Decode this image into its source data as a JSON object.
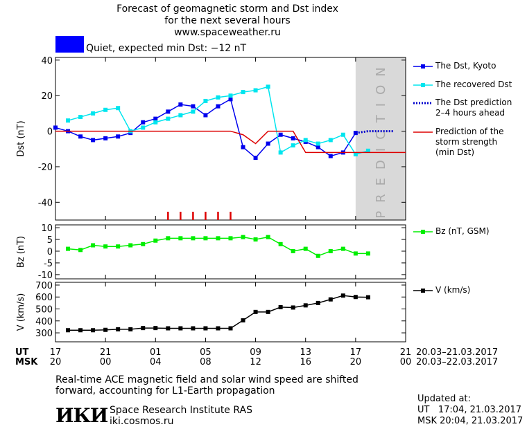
{
  "chart_data": [
    {
      "type": "line",
      "title": [
        "Forecast of geomagnetic storm and Dst index",
        "for the next several hours",
        "www.spaceweather.ru"
      ],
      "status": "Quiet, expected min Dst: −12 nT",
      "status_color": "#0000ff",
      "y_label": "Dst (nT)",
      "xlim": [
        0,
        28
      ],
      "ylim": [
        -50,
        41.5
      ],
      "yticks": [
        40,
        20,
        0,
        -20,
        -40
      ],
      "prediction_label": "PREDICTION",
      "prediction_span": [
        24,
        28
      ],
      "prediction_color": "#d9d9d9",
      "markers_x": [
        9,
        10,
        11,
        12,
        13,
        14
      ],
      "markers_color": "#dd0000",
      "series": [
        {
          "name": "The Dst, Kyoto",
          "color": "#0000ee",
          "marker": "square",
          "x": [
            0,
            1,
            2,
            3,
            4,
            5,
            6,
            7,
            8,
            9,
            10,
            11,
            12,
            13,
            14,
            15,
            16,
            17,
            18,
            19,
            20,
            21,
            22,
            23,
            24
          ],
          "values": [
            2,
            0,
            -3,
            -5,
            -4,
            -3,
            -1,
            5,
            7,
            11,
            15,
            14,
            9,
            14,
            18,
            -9,
            -15,
            -7,
            -2,
            -4,
            -6,
            -9,
            -14,
            -12,
            -1
          ]
        },
        {
          "name": "The recovered Dst",
          "color": "#00e5ee",
          "marker": "square",
          "x": [
            1,
            2,
            3,
            4,
            5,
            6,
            7,
            8,
            9,
            10,
            11,
            12,
            13,
            14,
            15,
            16,
            17,
            18,
            19,
            20,
            21,
            22,
            23,
            24,
            25
          ],
          "values": [
            6,
            8,
            10,
            12,
            13,
            0,
            2,
            5,
            7,
            9,
            11,
            17,
            19,
            20,
            22,
            23,
            25,
            -12,
            -8,
            -5,
            -7,
            -5,
            -2,
            -13,
            -11
          ]
        },
        {
          "name": "The Dst prediction\n2–4 hours ahead",
          "color": "#0000cc",
          "dash": "dotted",
          "x": [
            24,
            25,
            26,
            27
          ],
          "values": [
            -1,
            0,
            0,
            0
          ]
        },
        {
          "name": "Prediction of the\nstorm strength\n(min Dst)",
          "color": "#dd0000",
          "x": [
            0,
            14,
            15,
            16,
            17,
            19,
            20,
            28
          ],
          "values": [
            0,
            0,
            -2,
            -7,
            0,
            0,
            -12,
            -12
          ]
        }
      ]
    },
    {
      "type": "line",
      "y_label": "Bz (nT)",
      "xlim": [
        0,
        28
      ],
      "ylim": [
        -11.8,
        11.2
      ],
      "yticks": [
        10,
        5,
        0,
        -5,
        -10
      ],
      "series": [
        {
          "name": "Bz (nT, GSM)",
          "color": "#00ee00",
          "marker": "square",
          "x": [
            1,
            2,
            3,
            4,
            5,
            6,
            7,
            8,
            9,
            10,
            11,
            12,
            13,
            14,
            15,
            16,
            17,
            18,
            19,
            20,
            21,
            22,
            23,
            24,
            25
          ],
          "values": [
            1,
            0.5,
            2.5,
            2,
            2,
            2.5,
            3,
            4.5,
            5.5,
            5.5,
            5.5,
            5.5,
            5.5,
            5.5,
            6,
            5,
            6,
            3,
            0,
            1,
            -2,
            0,
            1,
            -1,
            -1
          ]
        }
      ]
    },
    {
      "type": "line",
      "y_label": "V (km/s)",
      "xlim": [
        0,
        28
      ],
      "ylim": [
        225,
        723
      ],
      "yticks": [
        700,
        600,
        500,
        400,
        300
      ],
      "xticks": [
        {
          "value": 0,
          "label": "17"
        },
        {
          "value": 4,
          "label": "21"
        },
        {
          "value": 8,
          "label": "01"
        },
        {
          "value": 12,
          "label": "05"
        },
        {
          "value": 16,
          "label": "09"
        },
        {
          "value": 20,
          "label": "13"
        },
        {
          "value": 24,
          "label": "17"
        },
        {
          "value": 28,
          "label": "21"
        }
      ],
      "msk_labels": [
        "20",
        "00",
        "04",
        "08",
        "12",
        "16",
        "20",
        "00"
      ],
      "ut_label": "UT",
      "msk_label": "MSK",
      "ut_range": "20.03–21.03.2017",
      "msk_range": "20.03–22.03.2017",
      "series": [
        {
          "name": "V (km/s)",
          "color": "#000000",
          "marker": "square",
          "x": [
            1,
            2,
            3,
            4,
            5,
            6,
            7,
            8,
            9,
            10,
            11,
            12,
            13,
            14,
            15,
            16,
            17,
            18,
            19,
            20,
            21,
            22,
            23,
            24,
            25
          ],
          "values": [
            322,
            322,
            322,
            325,
            330,
            330,
            340,
            340,
            338,
            338,
            338,
            338,
            338,
            338,
            405,
            475,
            475,
            515,
            512,
            530,
            550,
            580,
            612,
            600,
            598
          ]
        }
      ]
    }
  ],
  "footer": {
    "note": [
      "Real-time ACE magnetic field and solar wind speed are shifted",
      "forward, accounting for L1-Earth propagation"
    ],
    "logo": "ИКИ",
    "institute": "Space Research Institute RAS",
    "site": "iki.cosmos.ru",
    "updated": [
      "Updated at:",
      "UT   17:04, 21.03.2017",
      "MSK 20:04, 21.03.2017"
    ]
  }
}
